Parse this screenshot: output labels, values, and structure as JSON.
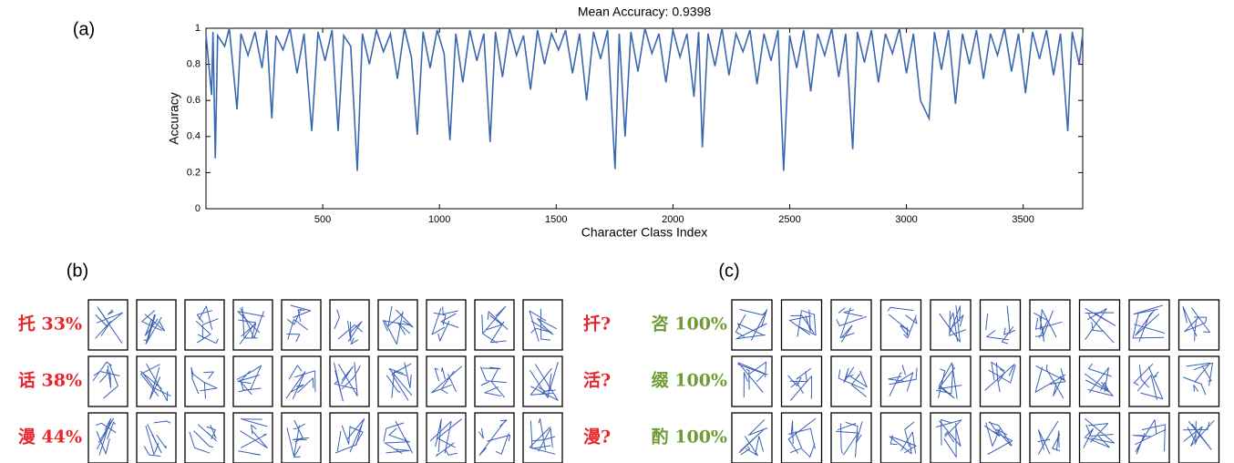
{
  "chart_data": {
    "type": "line",
    "panel_label": "(a)",
    "title": "Mean Accuracy: 0.9398",
    "xlabel": "Character Class Index",
    "ylabel": "Accuracy",
    "xlim": [
      0,
      3755
    ],
    "ylim": [
      0,
      1
    ],
    "xticks": [
      500,
      1000,
      1500,
      2000,
      2500,
      3000,
      3500
    ],
    "yticks": [
      0,
      0.2,
      0.4,
      0.6,
      0.8,
      1
    ],
    "x": [
      0,
      24,
      30,
      40,
      50,
      80,
      100,
      133,
      150,
      180,
      210,
      240,
      260,
      282,
      300,
      330,
      360,
      390,
      420,
      453,
      480,
      510,
      540,
      566,
      590,
      620,
      648,
      670,
      700,
      730,
      760,
      790,
      820,
      850,
      880,
      905,
      930,
      960,
      990,
      1020,
      1045,
      1070,
      1100,
      1130,
      1160,
      1190,
      1217,
      1240,
      1270,
      1300,
      1330,
      1360,
      1390,
      1420,
      1450,
      1480,
      1510,
      1540,
      1570,
      1600,
      1630,
      1660,
      1690,
      1720,
      1752,
      1770,
      1795,
      1820,
      1850,
      1880,
      1910,
      1940,
      1970,
      2000,
      2030,
      2060,
      2090,
      2110,
      2126,
      2150,
      2180,
      2210,
      2240,
      2270,
      2300,
      2330,
      2360,
      2390,
      2420,
      2450,
      2474,
      2500,
      2530,
      2560,
      2590,
      2620,
      2650,
      2680,
      2710,
      2740,
      2770,
      2790,
      2820,
      2850,
      2880,
      2910,
      2940,
      2970,
      3000,
      3030,
      3060,
      3097,
      3120,
      3150,
      3180,
      3210,
      3240,
      3270,
      3300,
      3330,
      3360,
      3390,
      3420,
      3450,
      3480,
      3510,
      3540,
      3570,
      3600,
      3630,
      3660,
      3691,
      3710,
      3740,
      3755
    ],
    "series": [
      {
        "name": "Accuracy",
        "color": "#3a68b0",
        "values": [
          0.97,
          0.63,
          0.98,
          0.28,
          0.96,
          0.9,
          1,
          0.55,
          0.97,
          0.85,
          0.98,
          0.78,
          0.99,
          0.5,
          0.96,
          0.88,
          1,
          0.75,
          0.97,
          0.43,
          0.98,
          0.82,
          0.99,
          0.43,
          0.96,
          0.9,
          0.21,
          0.97,
          0.8,
          0.99,
          0.87,
          0.97,
          0.72,
          1,
          0.84,
          0.41,
          0.98,
          0.78,
          0.99,
          0.86,
          0.38,
          0.97,
          0.7,
          0.99,
          0.82,
          0.97,
          0.37,
          0.98,
          0.73,
          1,
          0.85,
          0.96,
          0.66,
          0.99,
          0.8,
          0.97,
          0.88,
          0.99,
          0.75,
          0.97,
          0.6,
          0.98,
          0.83,
          0.99,
          0.22,
          0.97,
          0.4,
          0.98,
          0.76,
          1,
          0.86,
          0.97,
          0.7,
          0.99,
          0.84,
          0.97,
          0.62,
          0.98,
          0.34,
          0.97,
          0.79,
          1,
          0.74,
          0.97,
          0.87,
          0.99,
          0.69,
          0.97,
          0.82,
          0.99,
          0.21,
          0.96,
          0.78,
          0.99,
          0.65,
          0.97,
          0.85,
          1,
          0.73,
          0.97,
          0.33,
          0.98,
          0.81,
          0.99,
          0.7,
          0.97,
          0.86,
          1,
          0.75,
          0.97,
          0.6,
          0.5,
          0.98,
          0.77,
          0.99,
          0.58,
          0.97,
          0.8,
          0.99,
          0.72,
          0.97,
          0.85,
          1,
          0.76,
          0.97,
          0.64,
          0.98,
          0.83,
          0.99,
          0.74,
          0.97,
          0.43,
          0.98,
          0.8,
          0.97
        ]
      }
    ]
  },
  "panels": [
    {
      "label": "(b)",
      "label_color": "#e8262b",
      "ink": "#3b5fb5",
      "rows": [
        {
          "label": "托 33%",
          "guess": "扦?"
        },
        {
          "label": "话 38%",
          "guess": "活?"
        },
        {
          "label": "漫 44%",
          "guess": "漫?"
        }
      ]
    },
    {
      "label": "(c)",
      "label_color": "#6e9b34",
      "ink": "#3b5fb5",
      "rows": [
        {
          "label": "咨 100%"
        },
        {
          "label": "缀 100%"
        },
        {
          "label": "酌 100%"
        }
      ]
    }
  ]
}
